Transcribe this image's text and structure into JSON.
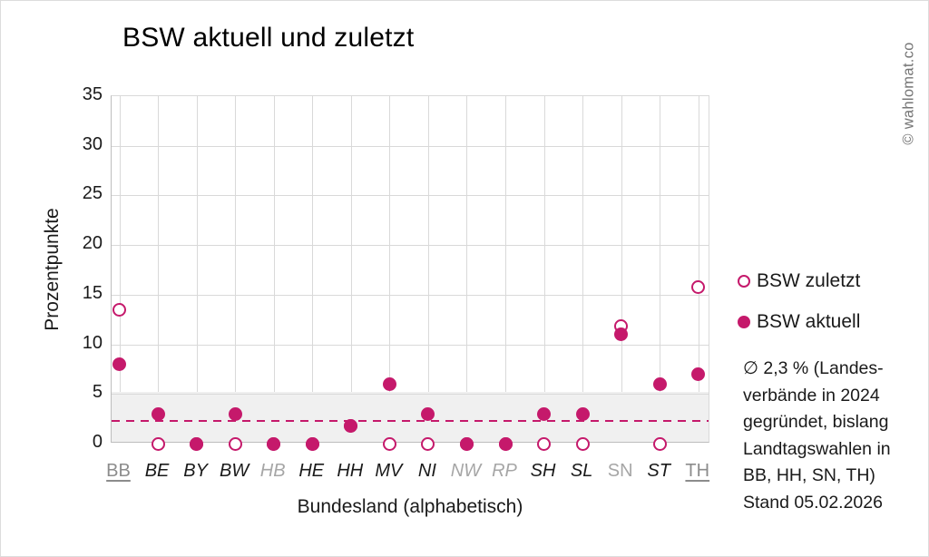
{
  "title": "BSW aktuell und zuletzt",
  "watermark": "© wahlomat.co",
  "colors": {
    "accent": "#c5196b",
    "band": "#f0f0f0",
    "gridline": "#d9d9d9",
    "axis": "#bdbdbd",
    "muted": "#a6a6a6",
    "muted_dark": "#8c8c8c"
  },
  "legend": [
    {
      "label": "BSW zuletzt",
      "marker": "open-circle"
    },
    {
      "label": "BSW aktuell",
      "marker": "filled-circle"
    }
  ],
  "annotation": {
    "lines": [
      "∅ 2,3 % (Landes-",
      "verbände in 2024",
      "gegründet, bislang",
      "Landtagswahlen in",
      "BB, HH, SN, TH)",
      "Stand 05.02.2026"
    ]
  },
  "chart_data": {
    "type": "scatter",
    "title": "BSW aktuell und zuletzt",
    "xlabel": "Bundesland (alphabetisch)",
    "ylabel": "Prozentpunkte",
    "ylim": [
      0,
      35
    ],
    "yticks": [
      0,
      5,
      10,
      15,
      20,
      25,
      30,
      35
    ],
    "grid": true,
    "legend_position": "right",
    "shaded_band": {
      "from": 0,
      "to": 5
    },
    "average_line": {
      "value": 2.3,
      "style": "dashed"
    },
    "categories": [
      {
        "code": "BB",
        "style": "gray-underline"
      },
      {
        "code": "BE",
        "style": "black-italic"
      },
      {
        "code": "BY",
        "style": "black-italic"
      },
      {
        "code": "BW",
        "style": "black-italic"
      },
      {
        "code": "HB",
        "style": "gray-italic"
      },
      {
        "code": "HE",
        "style": "black-italic"
      },
      {
        "code": "HH",
        "style": "black-italic"
      },
      {
        "code": "MV",
        "style": "black-italic"
      },
      {
        "code": "NI",
        "style": "black-italic"
      },
      {
        "code": "NW",
        "style": "gray-italic"
      },
      {
        "code": "RP",
        "style": "gray-italic"
      },
      {
        "code": "SH",
        "style": "black-italic"
      },
      {
        "code": "SL",
        "style": "black-italic"
      },
      {
        "code": "SN",
        "style": "gray"
      },
      {
        "code": "ST",
        "style": "black-italic"
      },
      {
        "code": "TH",
        "style": "gray-underline"
      }
    ],
    "series": [
      {
        "name": "BSW zuletzt",
        "marker": "open-circle",
        "values": [
          13.5,
          0,
          0,
          0,
          0,
          0,
          1.8,
          0,
          0,
          0,
          0,
          0,
          0,
          11.8,
          0,
          15.8
        ]
      },
      {
        "name": "BSW aktuell",
        "marker": "filled-circle",
        "values": [
          8,
          3,
          0,
          3,
          0,
          0,
          1.8,
          6,
          3,
          0,
          0,
          3,
          3,
          11,
          6,
          7
        ]
      }
    ]
  }
}
